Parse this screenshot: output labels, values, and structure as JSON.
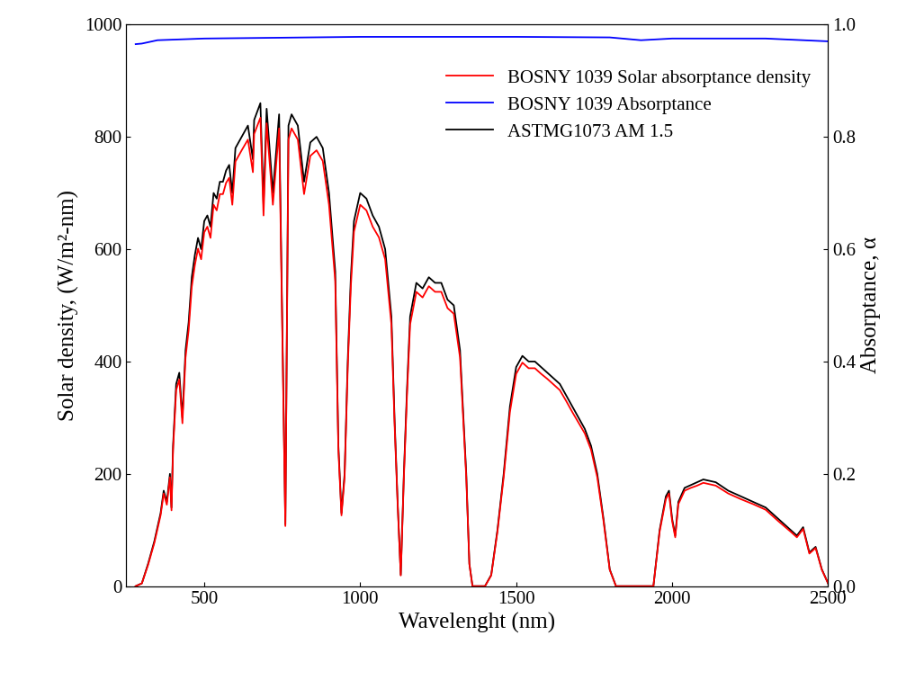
{
  "chart_data": {
    "type": "line",
    "x_label": "Wavelenght (nm)",
    "y_label": "Solar density, (W/m²-nm)",
    "y2_label": "Absorptance, α",
    "xlim": [
      250,
      2500
    ],
    "xticks": [
      500,
      1000,
      1500,
      2000,
      2500
    ],
    "ylim": [
      0,
      1000
    ],
    "yticks": [
      0,
      200,
      400,
      600,
      800,
      1000
    ],
    "y2lim": [
      0,
      1
    ],
    "y2ticks": [
      {
        "value": 0,
        "label": "0.0"
      },
      0.2,
      0.4,
      0.6,
      0.8,
      {
        "value": 1,
        "label": "1.0"
      }
    ],
    "legend": "upper right",
    "grid": false,
    "series": [
      {
        "name": "BOSNY 1039 Solar absorptance density",
        "color": "#ff0000",
        "line_style": "solid",
        "x": [
          280,
          300,
          320,
          340,
          360,
          370,
          380,
          390,
          395,
          400,
          410,
          420,
          430,
          440,
          450,
          460,
          470,
          480,
          490,
          500,
          510,
          520,
          530,
          540,
          550,
          560,
          570,
          580,
          590,
          600,
          620,
          640,
          656,
          660,
          680,
          690,
          700,
          720,
          740,
          760,
          770,
          780,
          800,
          820,
          840,
          860,
          880,
          900,
          920,
          930,
          940,
          950,
          960,
          970,
          980,
          1000,
          1020,
          1040,
          1060,
          1080,
          1100,
          1110,
          1120,
          1130,
          1140,
          1150,
          1160,
          1180,
          1200,
          1220,
          1240,
          1260,
          1280,
          1300,
          1320,
          1340,
          1350,
          1360,
          1400,
          1420,
          1440,
          1460,
          1480,
          1500,
          1520,
          1540,
          1560,
          1580,
          1600,
          1620,
          1640,
          1660,
          1680,
          1700,
          1720,
          1740,
          1760,
          1780,
          1800,
          1820,
          1940,
          1960,
          1980,
          1990,
          2000,
          2010,
          2020,
          2040,
          2060,
          2080,
          2100,
          2140,
          2180,
          2220,
          2260,
          2300,
          2340,
          2380,
          2400,
          2420,
          2440,
          2460,
          2480,
          2500
        ],
        "values": [
          0,
          5,
          38,
          77,
          126,
          165,
          145,
          194,
          135,
          242,
          349,
          368,
          290,
          407,
          456,
          533,
          572,
          601,
          582,
          630,
          640,
          620,
          679,
          669,
          698,
          698,
          718,
          727,
          679,
          756,
          776,
          795,
          737,
          805,
          834,
          660,
          824,
          679,
          815,
          107,
          795,
          815,
          795,
          698,
          766,
          776,
          757,
          679,
          543,
          243,
          126,
          194,
          388,
          534,
          631,
          679,
          669,
          640,
          621,
          582,
          466,
          291,
          146,
          19,
          194,
          340,
          466,
          524,
          514,
          534,
          524,
          524,
          495,
          485,
          407,
          194,
          39,
          0,
          0,
          19,
          97,
          194,
          310,
          378,
          398,
          388,
          388,
          378,
          369,
          359,
          349,
          330,
          310,
          291,
          272,
          243,
          194,
          116,
          29,
          0,
          0,
          97,
          155,
          165,
          116,
          87,
          146,
          170,
          175,
          179,
          184,
          179,
          165,
          155,
          146,
          136,
          116,
          97,
          87,
          102,
          58,
          68,
          29,
          5
        ]
      },
      {
        "name": "BOSNY 1039 Absorptance",
        "color": "#0000ff",
        "line_style": "solid",
        "axis": "y2",
        "x": [
          280,
          300,
          350,
          500,
          1000,
          1500,
          1800,
          1900,
          2000,
          2300,
          2500
        ],
        "values": [
          0.965,
          0.966,
          0.972,
          0.975,
          0.978,
          0.978,
          0.977,
          0.972,
          0.975,
          0.975,
          0.97
        ]
      },
      {
        "name": "ASTMG1073 AM 1.5",
        "color": "#000000",
        "line_style": "solid",
        "x": [
          280,
          300,
          320,
          340,
          360,
          370,
          380,
          390,
          395,
          400,
          410,
          420,
          430,
          440,
          450,
          460,
          470,
          480,
          490,
          500,
          510,
          520,
          530,
          540,
          550,
          560,
          570,
          580,
          590,
          600,
          620,
          640,
          656,
          660,
          680,
          690,
          700,
          720,
          740,
          760,
          770,
          780,
          800,
          820,
          840,
          860,
          880,
          900,
          920,
          930,
          940,
          950,
          960,
          970,
          980,
          1000,
          1020,
          1040,
          1060,
          1080,
          1100,
          1110,
          1120,
          1130,
          1140,
          1150,
          1160,
          1180,
          1200,
          1220,
          1240,
          1260,
          1280,
          1300,
          1320,
          1340,
          1350,
          1360,
          1400,
          1420,
          1440,
          1460,
          1480,
          1500,
          1520,
          1540,
          1560,
          1580,
          1600,
          1620,
          1640,
          1660,
          1680,
          1700,
          1720,
          1740,
          1760,
          1780,
          1800,
          1820,
          1940,
          1960,
          1980,
          1990,
          2000,
          2010,
          2020,
          2040,
          2060,
          2080,
          2100,
          2140,
          2180,
          2220,
          2260,
          2300,
          2340,
          2380,
          2400,
          2420,
          2440,
          2460,
          2480,
          2500
        ],
        "values": [
          0,
          5,
          40,
          80,
          130,
          170,
          150,
          200,
          140,
          250,
          360,
          380,
          300,
          420,
          470,
          550,
          590,
          620,
          600,
          650,
          660,
          640,
          700,
          690,
          720,
          720,
          740,
          750,
          700,
          780,
          800,
          820,
          760,
          830,
          860,
          680,
          850,
          700,
          840,
          110,
          820,
          840,
          820,
          720,
          790,
          800,
          780,
          700,
          560,
          250,
          130,
          200,
          400,
          550,
          650,
          700,
          690,
          660,
          640,
          600,
          480,
          300,
          150,
          20,
          200,
          350,
          480,
          540,
          530,
          550,
          540,
          540,
          510,
          500,
          420,
          200,
          40,
          0,
          0,
          20,
          100,
          200,
          320,
          390,
          410,
          400,
          400,
          390,
          380,
          370,
          360,
          340,
          320,
          300,
          280,
          250,
          200,
          120,
          30,
          0,
          0,
          100,
          160,
          170,
          120,
          90,
          150,
          175,
          180,
          185,
          190,
          185,
          170,
          160,
          150,
          140,
          120,
          100,
          90,
          105,
          60,
          70,
          30,
          5
        ]
      }
    ]
  }
}
